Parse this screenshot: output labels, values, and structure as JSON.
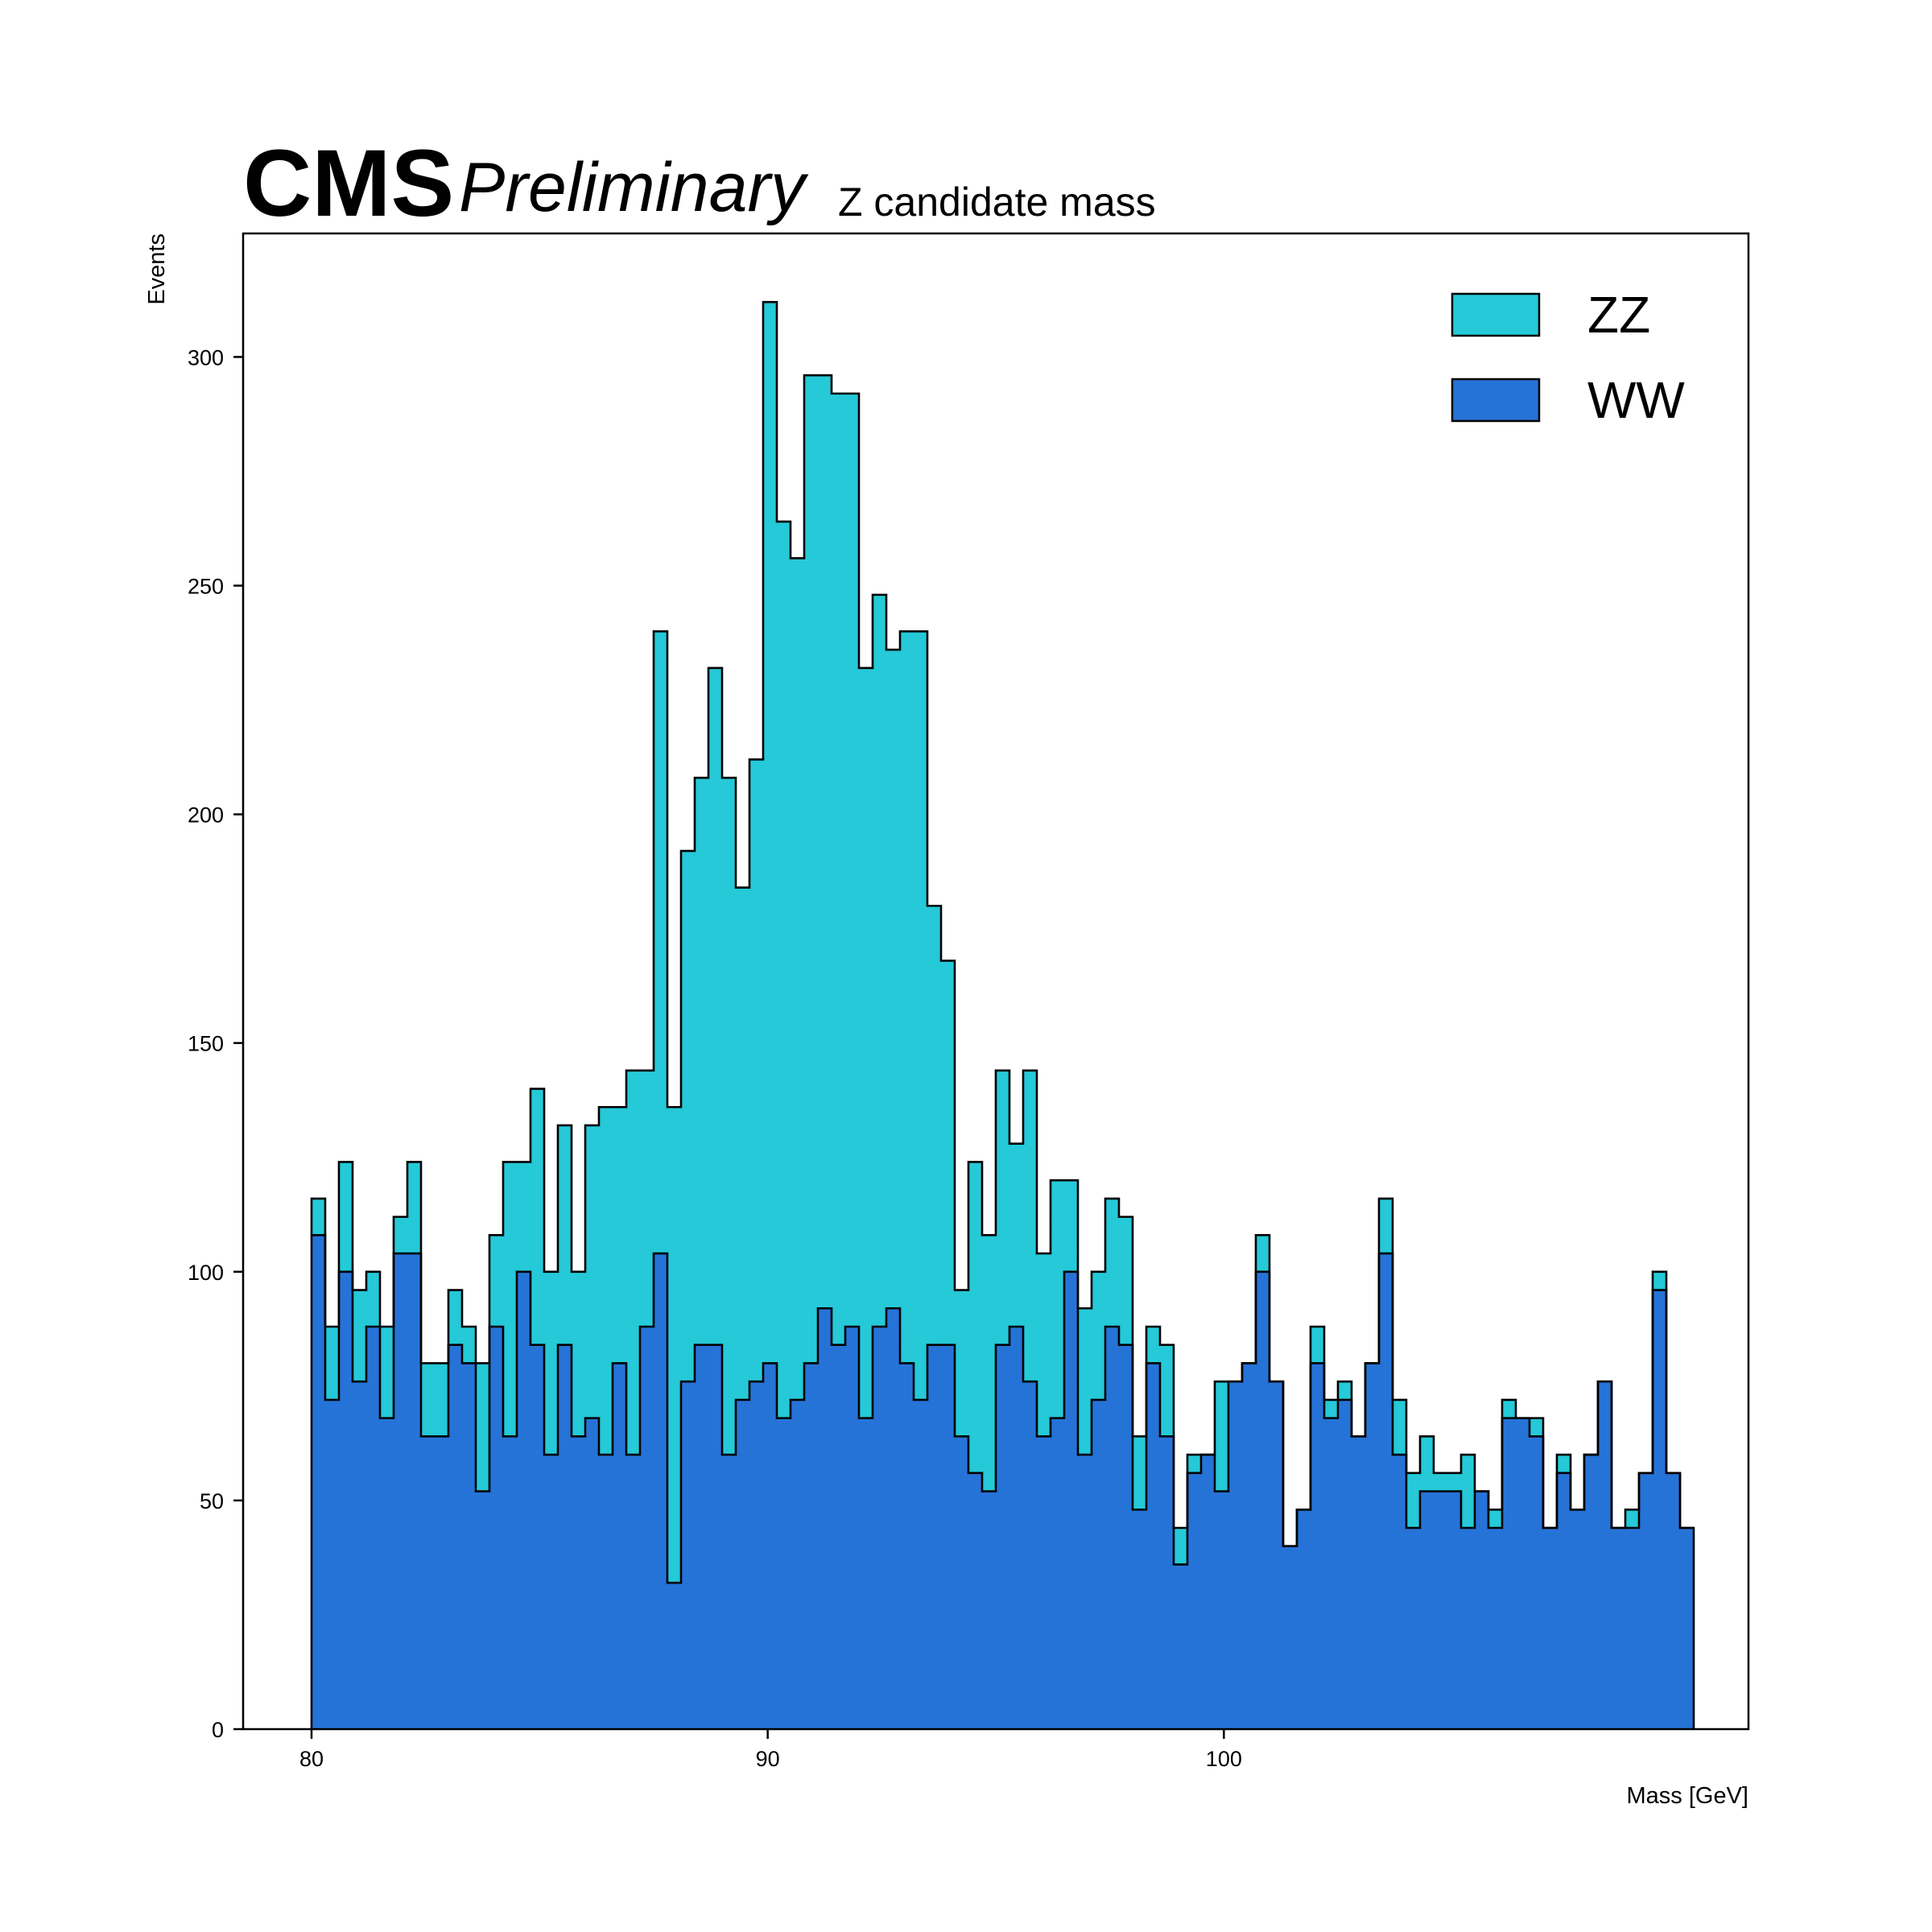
{
  "header": {
    "experiment": "CMS",
    "status": "Preliminary",
    "title": "Z candidate mass"
  },
  "chart_data": {
    "type": "histogram-stacked",
    "xlabel": "Mass [GeV]",
    "ylabel": "Events",
    "xlim": [
      78.5,
      111.5
    ],
    "ylim": [
      0,
      327
    ],
    "xticks": [
      80,
      90,
      100
    ],
    "yticks": [
      0,
      50,
      100,
      150,
      200,
      250,
      300
    ],
    "bin_start": 80,
    "bin_width": 0.3,
    "grid": false,
    "legend_position": "top-right",
    "stack_order": [
      "WW",
      "ZZ"
    ],
    "legend": [
      "ZZ",
      "WW"
    ],
    "series": [
      {
        "name": "WW",
        "color": "#2673d8",
        "values": [
          108,
          72,
          100,
          76,
          88,
          68,
          104,
          104,
          64,
          64,
          84,
          80,
          52,
          88,
          64,
          100,
          84,
          60,
          84,
          64,
          68,
          60,
          80,
          60,
          88,
          104,
          32,
          76,
          84,
          84,
          60,
          72,
          76,
          80,
          68,
          72,
          80,
          92,
          84,
          88,
          68,
          88,
          92,
          80,
          72,
          84,
          84,
          64,
          56,
          52,
          84,
          88,
          76,
          64,
          68,
          100,
          60,
          72,
          88,
          84,
          48,
          80,
          64,
          36,
          56,
          60,
          52,
          76,
          80,
          100,
          76,
          40,
          48,
          80,
          68,
          72,
          64,
          80,
          104,
          60,
          44,
          52,
          52,
          52,
          44,
          52,
          44,
          68,
          68,
          64,
          44,
          56,
          48,
          60,
          76,
          44,
          44,
          56,
          96,
          56,
          44
        ]
      },
      {
        "name": "ZZ",
        "color": "#25c9d8",
        "values": [
          8,
          16,
          24,
          20,
          12,
          20,
          8,
          20,
          16,
          16,
          12,
          8,
          28,
          20,
          60,
          24,
          56,
          40,
          48,
          36,
          64,
          76,
          56,
          84,
          56,
          136,
          104,
          116,
          124,
          148,
          148,
          112,
          136,
          232,
          196,
          184,
          216,
          204,
          208,
          204,
          164,
          160,
          144,
          160,
          168,
          96,
          84,
          32,
          68,
          56,
          60,
          40,
          68,
          40,
          52,
          20,
          32,
          28,
          28,
          28,
          16,
          8,
          20,
          8,
          4,
          0,
          24,
          0,
          0,
          8,
          0,
          0,
          0,
          8,
          4,
          4,
          0,
          0,
          12,
          12,
          12,
          12,
          4,
          4,
          16,
          0,
          4,
          4,
          0,
          4,
          0,
          4,
          0,
          0,
          0,
          0,
          4,
          0,
          4,
          0,
          0
        ]
      }
    ]
  }
}
